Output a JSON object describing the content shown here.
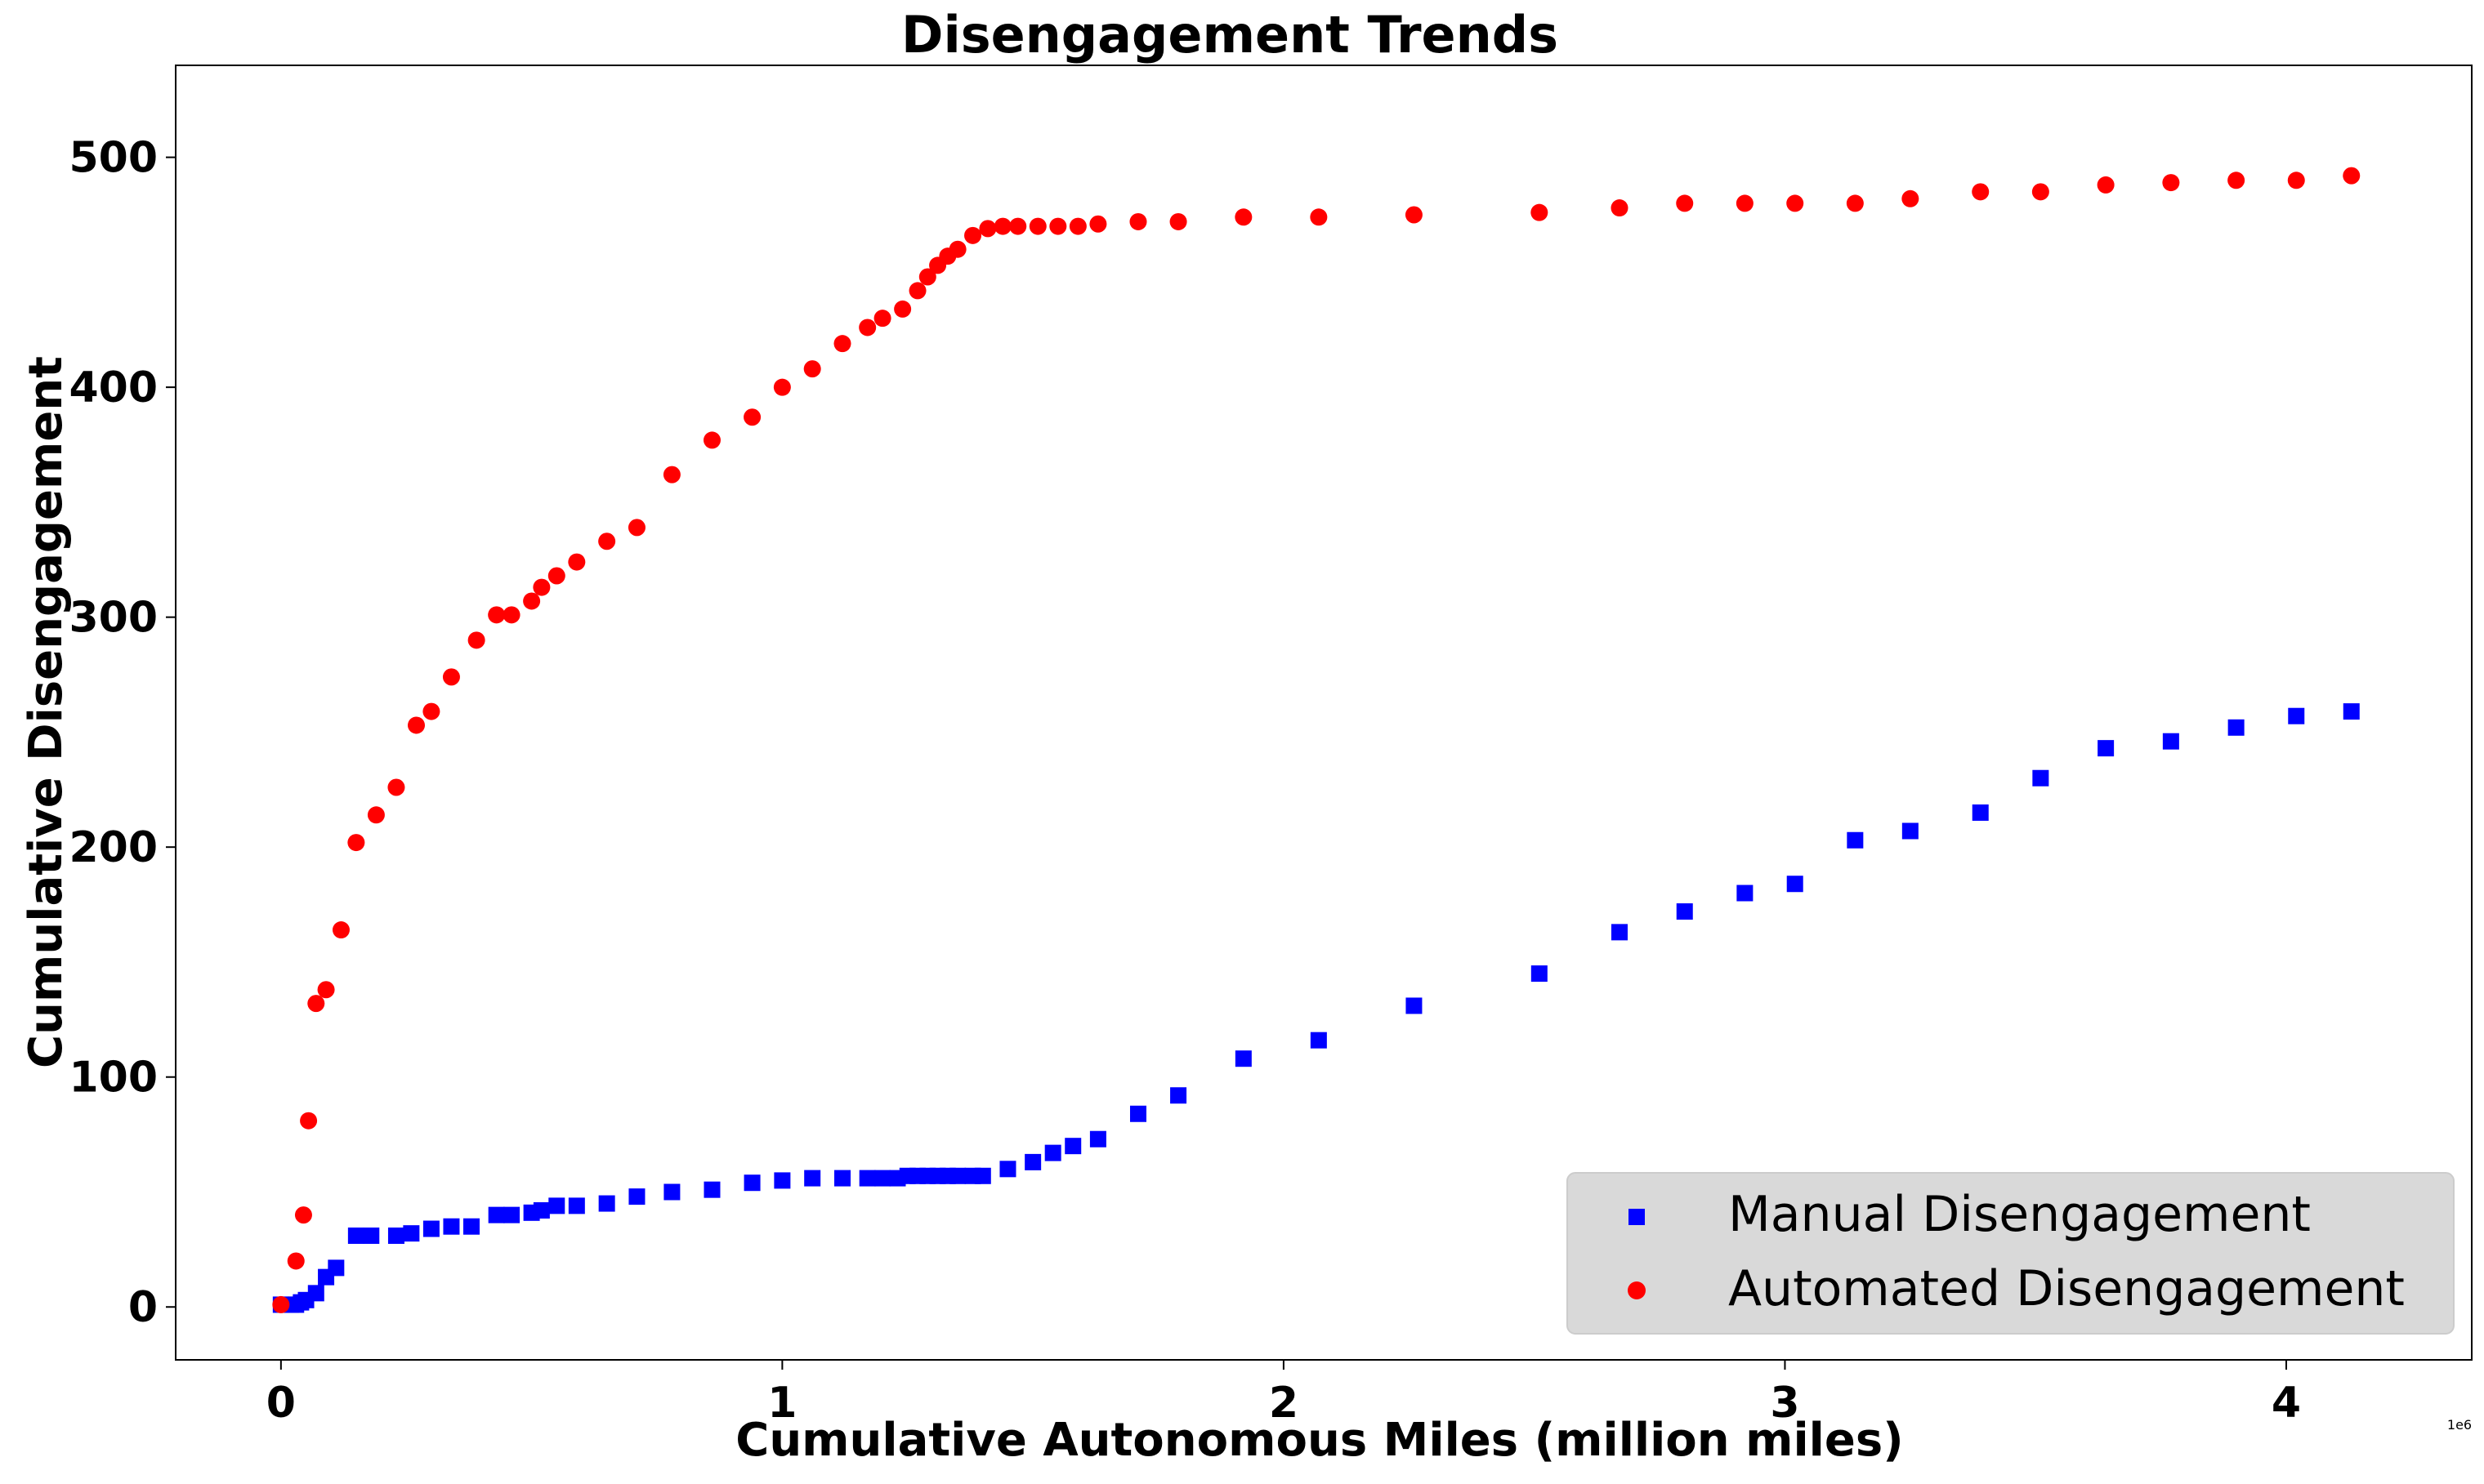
{
  "chart_data": {
    "type": "scatter",
    "title": "Disengagement Trends",
    "xlabel": "Cumulative Autonomous Miles (million miles)",
    "ylabel": "Cumulative Disengagement",
    "x_offset_label": "1e6",
    "xlim": [
      -0.21,
      4.37
    ],
    "ylim": [
      -23,
      540
    ],
    "x_ticks": [
      0,
      1,
      2,
      3,
      4
    ],
    "x_tick_labels": [
      "0",
      "1",
      "2",
      "3",
      "4"
    ],
    "y_ticks": [
      0,
      100,
      200,
      300,
      400,
      500
    ],
    "y_tick_labels": [
      "0",
      "100",
      "200",
      "300",
      "400",
      "500"
    ],
    "legend_position": "lower right",
    "series": [
      {
        "name": "Manual Disengagement",
        "marker": "square",
        "color": "#0000ff",
        "points": [
          [
            0.0,
            1
          ],
          [
            0.02,
            1
          ],
          [
            0.03,
            1
          ],
          [
            0.04,
            2
          ],
          [
            0.05,
            3
          ],
          [
            0.07,
            6
          ],
          [
            0.09,
            13
          ],
          [
            0.11,
            17
          ],
          [
            0.15,
            31
          ],
          [
            0.18,
            31
          ],
          [
            0.23,
            31
          ],
          [
            0.26,
            32
          ],
          [
            0.3,
            34
          ],
          [
            0.34,
            35
          ],
          [
            0.38,
            35
          ],
          [
            0.43,
            40
          ],
          [
            0.46,
            40
          ],
          [
            0.5,
            41
          ],
          [
            0.52,
            42
          ],
          [
            0.55,
            44
          ],
          [
            0.59,
            44
          ],
          [
            0.65,
            45
          ],
          [
            0.71,
            48
          ],
          [
            0.78,
            50
          ],
          [
            0.86,
            51
          ],
          [
            0.94,
            54
          ],
          [
            1.0,
            55
          ],
          [
            1.06,
            56
          ],
          [
            1.12,
            56
          ],
          [
            1.17,
            56
          ],
          [
            1.2,
            56
          ],
          [
            1.23,
            56
          ],
          [
            1.25,
            57
          ],
          [
            1.27,
            57
          ],
          [
            1.29,
            57
          ],
          [
            1.31,
            57
          ],
          [
            1.33,
            57
          ],
          [
            1.35,
            57
          ],
          [
            1.38,
            57
          ],
          [
            1.4,
            57
          ],
          [
            1.45,
            60
          ],
          [
            1.5,
            63
          ],
          [
            1.54,
            67
          ],
          [
            1.58,
            70
          ],
          [
            1.63,
            73
          ],
          [
            1.71,
            84
          ],
          [
            1.79,
            92
          ],
          [
            1.92,
            108
          ],
          [
            2.07,
            116
          ],
          [
            2.26,
            131
          ],
          [
            2.51,
            145
          ],
          [
            2.67,
            163
          ],
          [
            2.8,
            172
          ],
          [
            2.92,
            180
          ],
          [
            3.02,
            184
          ],
          [
            3.14,
            203
          ],
          [
            3.25,
            207
          ],
          [
            3.39,
            215
          ],
          [
            3.51,
            230
          ],
          [
            3.64,
            243
          ],
          [
            3.77,
            246
          ],
          [
            3.9,
            252
          ],
          [
            4.02,
            257
          ],
          [
            4.13,
            259
          ]
        ]
      },
      {
        "name": "Automated Disengagement",
        "marker": "circle",
        "color": "#ff0000",
        "points": [
          [
            0.0,
            1
          ],
          [
            0.03,
            20
          ],
          [
            0.045,
            40
          ],
          [
            0.055,
            81
          ],
          [
            0.07,
            132
          ],
          [
            0.09,
            138
          ],
          [
            0.12,
            164
          ],
          [
            0.15,
            202
          ],
          [
            0.19,
            214
          ],
          [
            0.23,
            226
          ],
          [
            0.27,
            253
          ],
          [
            0.3,
            259
          ],
          [
            0.34,
            274
          ],
          [
            0.39,
            290
          ],
          [
            0.43,
            301
          ],
          [
            0.46,
            301
          ],
          [
            0.5,
            307
          ],
          [
            0.52,
            313
          ],
          [
            0.55,
            318
          ],
          [
            0.59,
            324
          ],
          [
            0.65,
            333
          ],
          [
            0.71,
            339
          ],
          [
            0.78,
            362
          ],
          [
            0.86,
            377
          ],
          [
            0.94,
            387
          ],
          [
            1.0,
            400
          ],
          [
            1.06,
            408
          ],
          [
            1.12,
            419
          ],
          [
            1.17,
            426
          ],
          [
            1.2,
            430
          ],
          [
            1.24,
            434
          ],
          [
            1.27,
            442
          ],
          [
            1.29,
            448
          ],
          [
            1.31,
            453
          ],
          [
            1.33,
            457
          ],
          [
            1.35,
            460
          ],
          [
            1.38,
            466
          ],
          [
            1.41,
            469
          ],
          [
            1.44,
            470
          ],
          [
            1.47,
            470
          ],
          [
            1.51,
            470
          ],
          [
            1.55,
            470
          ],
          [
            1.59,
            470
          ],
          [
            1.63,
            471
          ],
          [
            1.71,
            472
          ],
          [
            1.79,
            472
          ],
          [
            1.92,
            474
          ],
          [
            2.07,
            474
          ],
          [
            2.26,
            475
          ],
          [
            2.51,
            476
          ],
          [
            2.67,
            478
          ],
          [
            2.8,
            480
          ],
          [
            2.92,
            480
          ],
          [
            3.02,
            480
          ],
          [
            3.14,
            480
          ],
          [
            3.25,
            482
          ],
          [
            3.39,
            485
          ],
          [
            3.51,
            485
          ],
          [
            3.64,
            488
          ],
          [
            3.77,
            489
          ],
          [
            3.9,
            490
          ],
          [
            4.02,
            490
          ],
          [
            4.13,
            492
          ]
        ]
      }
    ]
  }
}
